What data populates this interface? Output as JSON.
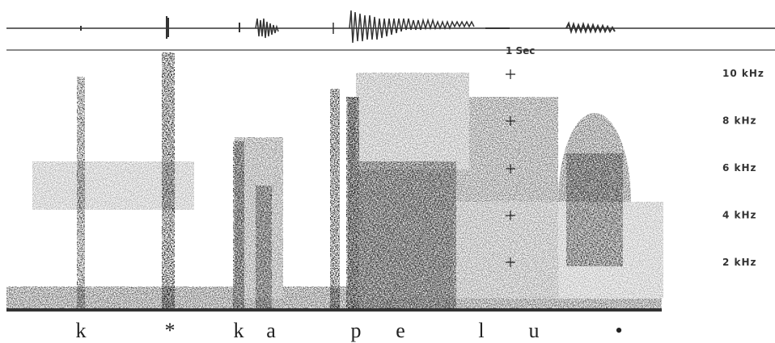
{
  "time_scale": {
    "label": "1 Sec"
  },
  "frequency_labels": [
    "10 kHz",
    "8 kHz",
    "6 kHz",
    "4 kHz",
    "2 kHz"
  ],
  "segments": [
    "k",
    "*",
    "k",
    "a",
    "p",
    "e",
    "l",
    "u",
    "•"
  ]
}
